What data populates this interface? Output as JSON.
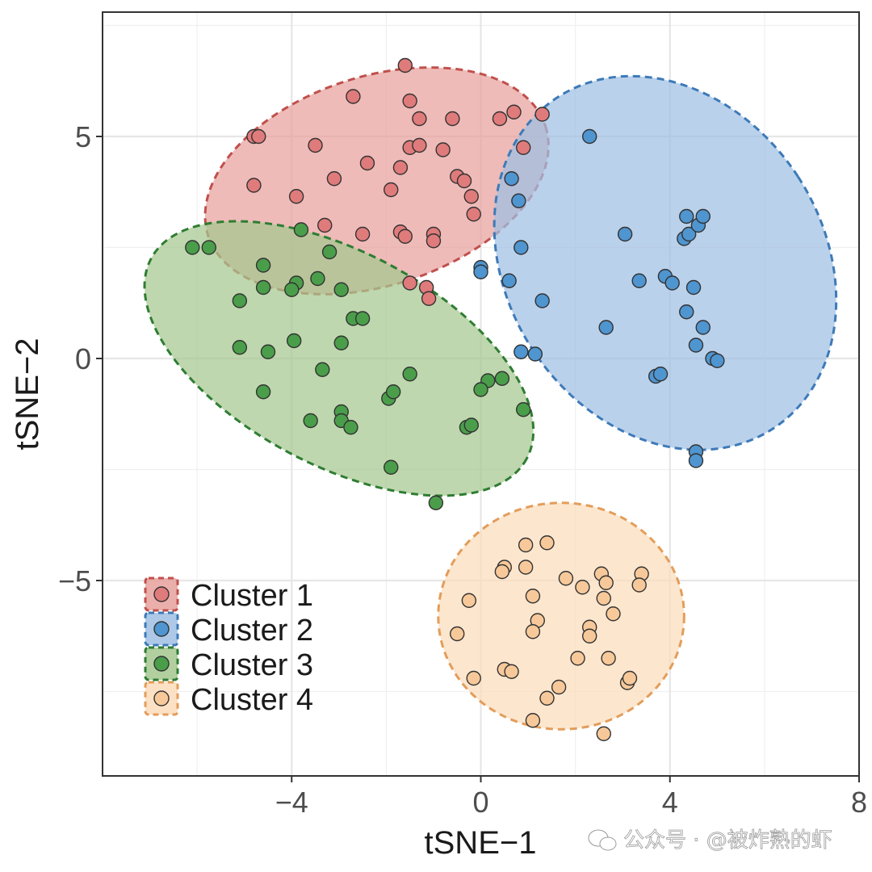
{
  "chart_data": {
    "type": "scatter",
    "title": "",
    "xlabel": "tSNE−1",
    "ylabel": "tSNE−2",
    "xlim": [
      -8,
      8.0
    ],
    "ylim": [
      -9.4,
      7.8
    ],
    "x_ticks": [
      -4,
      0,
      4,
      8
    ],
    "x_tick_labels": [
      "−4",
      "0",
      "4",
      "8"
    ],
    "y_ticks": [
      -5,
      0,
      5
    ],
    "y_tick_labels": [
      "−5",
      "0",
      "5"
    ],
    "grid": true,
    "legend_position": "bottom-left",
    "series": [
      {
        "name": "Cluster 1",
        "fill": "#e07b7b",
        "stroke": "#c0504d",
        "ellipse_fill": "#e8a19c",
        "ellipse": {
          "cx": -2.2,
          "cy": 4.0,
          "rx": 3.75,
          "ry": 2.35,
          "angle": 18
        },
        "points": [
          [
            -4.8,
            5.0
          ],
          [
            -4.7,
            5.0
          ],
          [
            -2.7,
            5.9
          ],
          [
            -1.6,
            6.6
          ],
          [
            -1.5,
            5.8
          ],
          [
            -1.3,
            5.4
          ],
          [
            -0.6,
            5.4
          ],
          [
            0.4,
            5.4
          ],
          [
            0.7,
            5.55
          ],
          [
            1.3,
            5.5
          ],
          [
            -3.5,
            4.8
          ],
          [
            -1.5,
            4.75
          ],
          [
            -1.3,
            4.8
          ],
          [
            -0.8,
            4.7
          ],
          [
            0.9,
            4.75
          ],
          [
            -2.4,
            4.4
          ],
          [
            -1.7,
            4.3
          ],
          [
            -3.1,
            4.05
          ],
          [
            -0.5,
            4.1
          ],
          [
            -0.35,
            4.0
          ],
          [
            -4.8,
            3.9
          ],
          [
            -1.9,
            3.8
          ],
          [
            -3.9,
            3.65
          ],
          [
            -0.2,
            3.65
          ],
          [
            -0.15,
            3.25
          ],
          [
            -3.3,
            3.0
          ],
          [
            -2.5,
            2.8
          ],
          [
            -1.7,
            2.85
          ],
          [
            -1.6,
            2.75
          ],
          [
            -1.0,
            2.8
          ],
          [
            -1.0,
            2.65
          ],
          [
            -1.5,
            1.7
          ],
          [
            -1.15,
            1.6
          ],
          [
            -1.1,
            1.35
          ]
        ]
      },
      {
        "name": "Cluster 2",
        "fill": "#4f95d0",
        "stroke": "#3d7ab8",
        "ellipse_fill": "#9fbfe3",
        "ellipse": {
          "cx": 3.9,
          "cy": 2.15,
          "rx": 3.35,
          "ry": 4.45,
          "angle": 33
        },
        "points": [
          [
            2.3,
            5.0
          ],
          [
            0.65,
            4.05
          ],
          [
            0.8,
            3.55
          ],
          [
            0.85,
            2.5
          ],
          [
            0.0,
            2.05
          ],
          [
            0.0,
            1.95
          ],
          [
            0.6,
            1.75
          ],
          [
            1.3,
            1.3
          ],
          [
            3.05,
            2.8
          ],
          [
            3.35,
            1.75
          ],
          [
            3.9,
            1.85
          ],
          [
            4.05,
            1.7
          ],
          [
            4.35,
            3.2
          ],
          [
            4.3,
            2.7
          ],
          [
            4.4,
            2.8
          ],
          [
            4.6,
            3.0
          ],
          [
            4.7,
            3.2
          ],
          [
            4.5,
            1.6
          ],
          [
            4.35,
            1.05
          ],
          [
            4.7,
            0.7
          ],
          [
            2.65,
            0.7
          ],
          [
            0.85,
            0.15
          ],
          [
            1.15,
            0.1
          ],
          [
            4.55,
            0.3
          ],
          [
            4.9,
            0.0
          ],
          [
            5.0,
            -0.05
          ],
          [
            3.7,
            -0.4
          ],
          [
            3.8,
            -0.35
          ],
          [
            4.55,
            -2.1
          ],
          [
            4.55,
            -2.3
          ]
        ]
      },
      {
        "name": "Cluster 3",
        "fill": "#4a9e4a",
        "stroke": "#2e7d32",
        "ellipse_fill": "#a5c78f",
        "ellipse": {
          "cx": -3.0,
          "cy": 0.0,
          "rx": 4.5,
          "ry": 2.4,
          "angle": -28
        },
        "points": [
          [
            -6.1,
            2.5
          ],
          [
            -5.75,
            2.5
          ],
          [
            -3.8,
            2.9
          ],
          [
            -3.2,
            2.4
          ],
          [
            -4.6,
            2.1
          ],
          [
            -3.45,
            1.8
          ],
          [
            -3.9,
            1.7
          ],
          [
            -2.95,
            1.55
          ],
          [
            -4.6,
            1.6
          ],
          [
            -4.0,
            1.55
          ],
          [
            -5.1,
            1.3
          ],
          [
            -2.7,
            0.9
          ],
          [
            -2.5,
            0.9
          ],
          [
            -3.95,
            0.4
          ],
          [
            -2.95,
            0.35
          ],
          [
            -5.1,
            0.25
          ],
          [
            -4.5,
            0.15
          ],
          [
            -3.35,
            -0.25
          ],
          [
            -1.5,
            -0.35
          ],
          [
            -1.95,
            -0.9
          ],
          [
            -1.85,
            -0.75
          ],
          [
            -4.6,
            -0.75
          ],
          [
            -2.95,
            -1.2
          ],
          [
            -2.95,
            -1.4
          ],
          [
            -3.6,
            -1.4
          ],
          [
            -2.75,
            -1.55
          ],
          [
            -0.3,
            -1.55
          ],
          [
            -0.2,
            -1.5
          ],
          [
            0.15,
            -0.5
          ],
          [
            0.45,
            -0.45
          ],
          [
            0.0,
            -0.7
          ],
          [
            0.9,
            -1.15
          ],
          [
            -1.9,
            -2.45
          ],
          [
            -0.95,
            -3.25
          ]
        ]
      },
      {
        "name": "Cluster 4",
        "fill": "#f7c99a",
        "stroke": "#e39d5a",
        "ellipse_fill": "#fbdcbb",
        "ellipse": {
          "cx": 1.7,
          "cy": -5.8,
          "rx": 2.6,
          "ry": 2.55,
          "angle": 0
        },
        "points": [
          [
            1.4,
            -4.15
          ],
          [
            0.95,
            -4.2
          ],
          [
            0.5,
            -4.7
          ],
          [
            0.45,
            -4.8
          ],
          [
            0.95,
            -4.7
          ],
          [
            1.8,
            -4.95
          ],
          [
            2.55,
            -4.85
          ],
          [
            3.4,
            -4.85
          ],
          [
            2.15,
            -5.15
          ],
          [
            2.65,
            -5.05
          ],
          [
            3.35,
            -5.1
          ],
          [
            -0.25,
            -5.45
          ],
          [
            1.1,
            -5.35
          ],
          [
            2.6,
            -5.4
          ],
          [
            2.8,
            -5.75
          ],
          [
            1.2,
            -5.9
          ],
          [
            1.1,
            -6.15
          ],
          [
            2.3,
            -6.05
          ],
          [
            2.3,
            -6.25
          ],
          [
            -0.5,
            -6.2
          ],
          [
            2.05,
            -6.75
          ],
          [
            2.7,
            -6.75
          ],
          [
            0.5,
            -7.0
          ],
          [
            0.65,
            -7.05
          ],
          [
            -0.15,
            -7.2
          ],
          [
            3.1,
            -7.3
          ],
          [
            3.15,
            -7.2
          ],
          [
            1.65,
            -7.4
          ],
          [
            1.4,
            -7.65
          ],
          [
            1.1,
            -8.15
          ],
          [
            2.6,
            -8.45
          ]
        ]
      }
    ]
  },
  "watermark": {
    "icon": "wechat-icon",
    "text": "公众号 · @被炸熟的虾"
  }
}
